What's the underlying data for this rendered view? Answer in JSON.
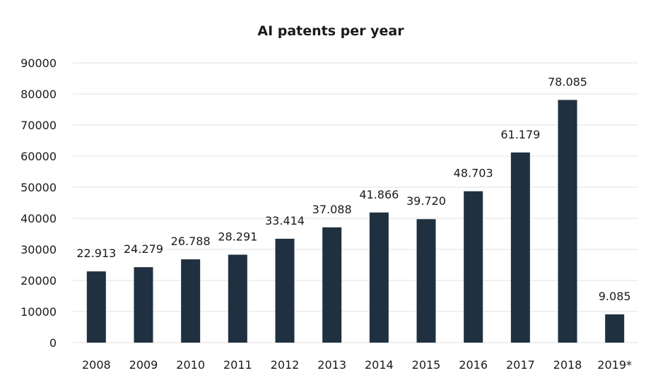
{
  "chart_data": {
    "type": "bar",
    "title": "AI patents per year",
    "xlabel": "",
    "ylabel": "",
    "categories": [
      "2008",
      "2009",
      "2010",
      "2011",
      "2012",
      "2013",
      "2014",
      "2015",
      "2016",
      "2017",
      "2018",
      "2019*"
    ],
    "values": [
      22913,
      24279,
      26788,
      28291,
      33414,
      37088,
      41866,
      39720,
      48703,
      61179,
      78085,
      9085
    ],
    "data_labels": [
      "22.913",
      "24.279",
      "26.788",
      "28.291",
      "33.414",
      "37.088",
      "41.866",
      "39.720",
      "48.703",
      "61.179",
      "78.085",
      "9.085"
    ],
    "ylim": [
      0,
      90000
    ],
    "yticks": [
      0,
      10000,
      20000,
      30000,
      40000,
      50000,
      60000,
      70000,
      80000,
      90000
    ],
    "ytick_labels": [
      "0",
      "10000",
      "20000",
      "30000",
      "40000",
      "50000",
      "60000",
      "70000",
      "80000",
      "90000"
    ],
    "grid": true,
    "legend": "none",
    "bar_color": "#1f3140"
  }
}
